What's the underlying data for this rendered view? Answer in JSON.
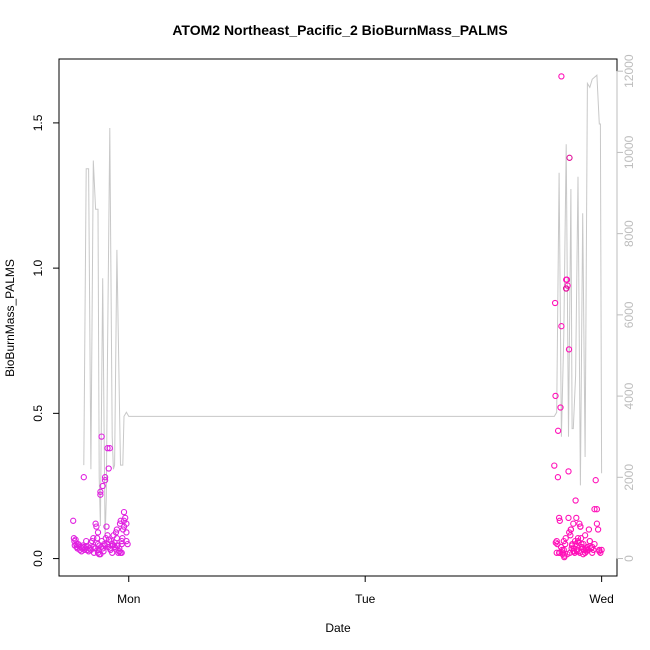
{
  "chart_data": {
    "type": "scatter",
    "title": "ATOM2 Northeast_Pacific_2 BioBurnMass_PALMS",
    "xlabel": "Date",
    "ylabel": "BioBurnMass_PALMS",
    "x_ticks": [
      {
        "label": "Mon",
        "day": 1.0
      },
      {
        "label": "Tue",
        "day": 2.0
      },
      {
        "label": "Wed",
        "day": 3.0
      }
    ],
    "xlim_days": [
      0.705,
      3.065
    ],
    "y_left": {
      "ticks": [
        0.0,
        0.5,
        1.0,
        1.5
      ],
      "labels": [
        "0.0",
        "0.5",
        "1.0",
        "1.5"
      ],
      "lim": [
        -0.06,
        1.72
      ]
    },
    "y_right": {
      "ticks": [
        0,
        2000,
        4000,
        6000,
        8000,
        10000,
        12000
      ],
      "labels": [
        "0",
        "2000",
        "4000",
        "6000",
        "8000",
        "10000",
        "12000"
      ],
      "lim": [
        -430,
        12300
      ],
      "color": "#bdbdbd"
    },
    "series": [
      {
        "kind": "line",
        "axis": "right",
        "color": "#c8c8c8",
        "x": [
          0.81,
          0.82,
          0.83,
          0.84,
          0.85,
          0.86,
          0.87,
          0.875,
          0.88,
          0.89,
          0.9,
          0.905,
          0.91,
          0.92,
          0.93,
          0.935,
          0.94,
          0.95,
          0.96,
          0.965,
          0.97,
          0.975,
          0.98,
          0.99,
          1.0,
          1.03,
          2.8,
          2.81,
          2.82,
          2.83,
          2.84,
          2.85,
          2.86,
          2.87,
          2.875,
          2.88,
          2.89,
          2.9,
          2.91,
          2.92,
          2.93,
          2.94,
          2.95,
          2.96,
          2.97,
          2.98,
          2.99,
          2.995,
          3.0
        ],
        "y": [
          2300,
          9600,
          9600,
          2200,
          9800,
          8600,
          8600,
          2000,
          800,
          6900,
          500,
          1500,
          5000,
          10600,
          3000,
          2200,
          2300,
          7600,
          4000,
          2300,
          2300,
          2300,
          3500,
          3600,
          3500,
          3500,
          3500,
          3600,
          9500,
          3000,
          5500,
          10200,
          3000,
          9100,
          3200,
          3200,
          4500,
          9400,
          1800,
          8500,
          2500,
          11700,
          11600,
          11800,
          11850,
          11900,
          10700,
          10700,
          2100
        ]
      },
      {
        "kind": "points",
        "axis": "left",
        "name": "",
        "x": [
          0.765,
          0.768,
          0.77,
          0.772,
          0.775,
          0.778,
          0.78,
          0.783,
          0.786,
          0.79,
          0.793,
          0.796,
          0.8,
          0.803,
          0.806,
          0.81,
          0.813,
          0.816,
          0.82,
          0.825,
          0.83,
          0.835,
          0.84,
          0.845,
          0.85,
          0.853,
          0.856,
          0.86,
          0.863,
          0.866,
          0.87,
          0.873,
          0.876,
          0.88,
          0.883,
          0.886,
          0.89,
          0.893,
          0.896,
          0.9,
          0.903,
          0.906,
          0.91,
          0.913,
          0.916,
          0.92,
          0.923,
          0.926,
          0.93,
          0.933,
          0.936,
          0.94,
          0.943,
          0.946,
          0.95,
          0.953,
          0.956,
          0.96,
          0.963,
          0.966,
          0.97,
          0.973,
          0.976,
          0.98,
          0.985,
          0.99,
          0.995,
          0.86,
          0.87,
          0.88,
          0.885,
          0.89,
          0.9,
          0.91,
          0.915,
          0.92,
          0.93,
          0.94,
          0.95,
          0.96,
          0.97,
          0.98,
          0.99,
          0.87,
          0.875,
          0.88,
          0.9,
          0.91,
          0.93,
          0.95,
          0.96,
          0.965,
          0.97,
          0.98,
          0.99,
          0.81,
          0.82,
          0.84,
          0.85
        ],
        "y": [
          0.13,
          0.07,
          0.06,
          0.045,
          0.065,
          0.05,
          0.04,
          0.035,
          0.05,
          0.045,
          0.03,
          0.04,
          0.025,
          0.035,
          0.045,
          0.04,
          0.03,
          0.035,
          0.04,
          0.03,
          0.025,
          0.035,
          0.055,
          0.06,
          0.04,
          0.02,
          0.035,
          0.12,
          0.11,
          0.07,
          0.05,
          0.03,
          0.045,
          0.015,
          0.04,
          0.06,
          0.035,
          0.025,
          0.05,
          0.045,
          0.07,
          0.11,
          0.05,
          0.04,
          0.065,
          0.035,
          0.03,
          0.06,
          0.02,
          0.045,
          0.08,
          0.04,
          0.035,
          0.09,
          0.07,
          0.045,
          0.02,
          0.025,
          0.12,
          0.13,
          0.06,
          0.07,
          0.1,
          0.16,
          0.14,
          0.12,
          0.05,
          0.035,
          0.09,
          0.22,
          0.42,
          0.25,
          0.27,
          0.08,
          0.31,
          0.38,
          0.045,
          0.055,
          0.1,
          0.035,
          0.02,
          0.11,
          0.06,
          0.02,
          0.015,
          0.23,
          0.28,
          0.38,
          0.05,
          0.045,
          0.025,
          0.02,
          0.05,
          0.13,
          0.09,
          0.28,
          0.06,
          0.03,
          0.07
        ],
        "colors": [
          "#e020e0"
        ]
      },
      {
        "kind": "points",
        "axis": "left",
        "name": "",
        "x": [
          2.8,
          2.803,
          2.806,
          2.81,
          2.813,
          2.816,
          2.82,
          2.823,
          2.826,
          2.83,
          2.833,
          2.836,
          2.84,
          2.843,
          2.846,
          2.85,
          2.853,
          2.856,
          2.86,
          2.863,
          2.866,
          2.87,
          2.873,
          2.876,
          2.88,
          2.883,
          2.886,
          2.89,
          2.893,
          2.896,
          2.9,
          2.903,
          2.906,
          2.91,
          2.913,
          2.916,
          2.92,
          2.923,
          2.926,
          2.93,
          2.933,
          2.936,
          2.94,
          2.943,
          2.946,
          2.95,
          2.955,
          2.96,
          2.965,
          2.97,
          2.975,
          2.98,
          2.985,
          2.99,
          2.995,
          3.0,
          2.805,
          2.815,
          2.822,
          2.828,
          2.835,
          2.842,
          2.848,
          2.855,
          2.862,
          2.868,
          2.875,
          2.882,
          2.888,
          2.895,
          2.902,
          2.908,
          2.915,
          2.922,
          2.93,
          2.94,
          2.81,
          2.82,
          2.83,
          2.84,
          2.85,
          2.86,
          2.87,
          2.88,
          2.89,
          2.9,
          2.91,
          2.92,
          2.93,
          2.94,
          2.95,
          2.96,
          2.97,
          2.98,
          2.99
        ],
        "y": [
          0.32,
          0.88,
          0.055,
          0.02,
          0.05,
          0.44,
          0.14,
          0.13,
          0.52,
          0.8,
          0.03,
          0.02,
          0.06,
          0.01,
          0.05,
          0.93,
          0.96,
          0.94,
          0.3,
          0.09,
          0.02,
          0.1,
          0.035,
          0.05,
          0.12,
          0.025,
          0.02,
          0.2,
          0.14,
          0.03,
          0.06,
          0.025,
          0.12,
          0.11,
          0.07,
          0.04,
          0.035,
          0.05,
          0.03,
          0.02,
          0.035,
          0.025,
          0.04,
          0.03,
          0.1,
          0.06,
          0.035,
          0.02,
          0.03,
          0.17,
          0.27,
          0.17,
          0.1,
          0.025,
          0.02,
          0.03,
          0.56,
          0.28,
          0.02,
          0.04,
          0.015,
          0.005,
          0.07,
          0.015,
          0.72,
          0.08,
          0.045,
          0.035,
          0.06,
          0.025,
          0.055,
          0.02,
          0.05,
          0.015,
          0.08,
          0.035,
          0.06,
          0.02,
          1.66,
          0.03,
          0.96,
          0.14,
          0.1,
          0.025,
          0.05,
          0.07,
          0.11,
          0.035,
          0.02,
          0.03,
          0.06,
          0.04,
          0.05,
          0.12,
          0.03
        ],
        "colors": [
          "#ff10b8"
        ]
      },
      {
        "kind": "points",
        "axis": "left",
        "name": "",
        "x": [
          2.864,
          2.85
        ],
        "y": [
          1.38,
          0.93
        ],
        "colors": [
          "#e0109a"
        ]
      }
    ],
    "grid": false,
    "legend": "none"
  }
}
